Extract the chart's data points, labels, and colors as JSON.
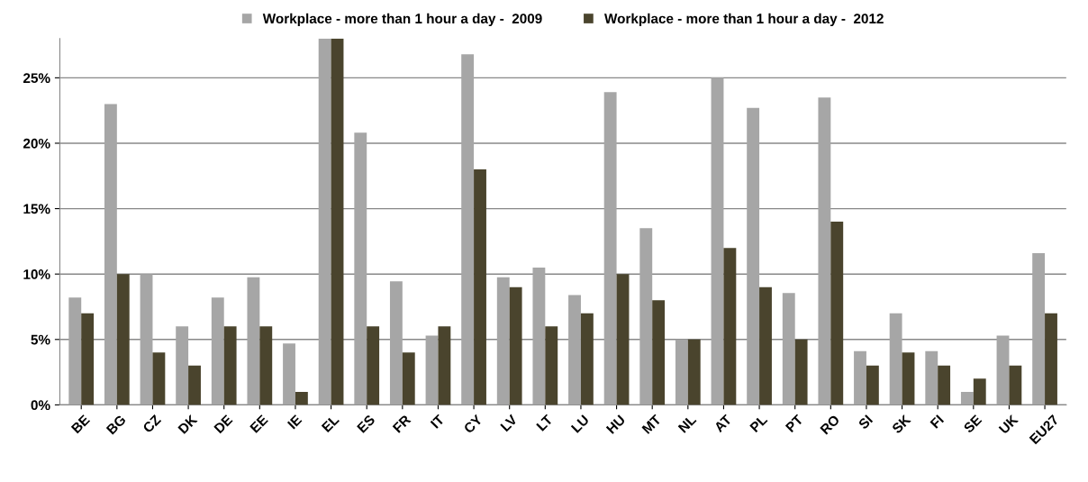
{
  "chart_data": {
    "type": "bar",
    "categories": [
      "BE",
      "BG",
      "CZ",
      "DK",
      "DE",
      "EE",
      "IE",
      "EL",
      "ES",
      "FR",
      "IT",
      "CY",
      "LV",
      "LT",
      "LU",
      "HU",
      "MT",
      "NL",
      "AT",
      "PL",
      "PT",
      "RO",
      "SI",
      "SK",
      "FI",
      "SE",
      "UK",
      "EU27"
    ],
    "series": [
      {
        "name": "Workplace - more than 1 hour a day -  2009",
        "color": "#a6a6a6",
        "values": [
          8.2,
          23.0,
          10.0,
          6.0,
          8.2,
          9.75,
          4.7,
          28,
          20.8,
          9.45,
          5.3,
          26.8,
          9.75,
          10.5,
          8.4,
          23.9,
          13.5,
          5.0,
          25.0,
          22.7,
          8.55,
          23.5,
          4.1,
          7.0,
          4.1,
          1.0,
          5.3,
          11.6
        ]
      },
      {
        "name": "Workplace - more than 1 hour a day -  2012",
        "color": "#4a442d",
        "values": [
          7.0,
          10.0,
          4.0,
          3.0,
          6.0,
          6.0,
          1.0,
          28,
          6.0,
          4.0,
          6.0,
          18.0,
          9.0,
          6.0,
          7.0,
          10.0,
          8.0,
          5.0,
          12.0,
          9.0,
          5.0,
          14.0,
          3.0,
          4.0,
          3.0,
          2.0,
          3.0,
          7.0
        ]
      }
    ],
    "ylim": [
      0,
      28
    ],
    "yticks": [
      {
        "value": 0,
        "label": "0%"
      },
      {
        "value": 5,
        "label": "5%"
      },
      {
        "value": 10,
        "label": "10%"
      },
      {
        "value": 15,
        "label": "15%"
      },
      {
        "value": 20,
        "label": "20%"
      },
      {
        "value": 25,
        "label": "25%"
      }
    ],
    "grid": "y",
    "legend": "top"
  }
}
